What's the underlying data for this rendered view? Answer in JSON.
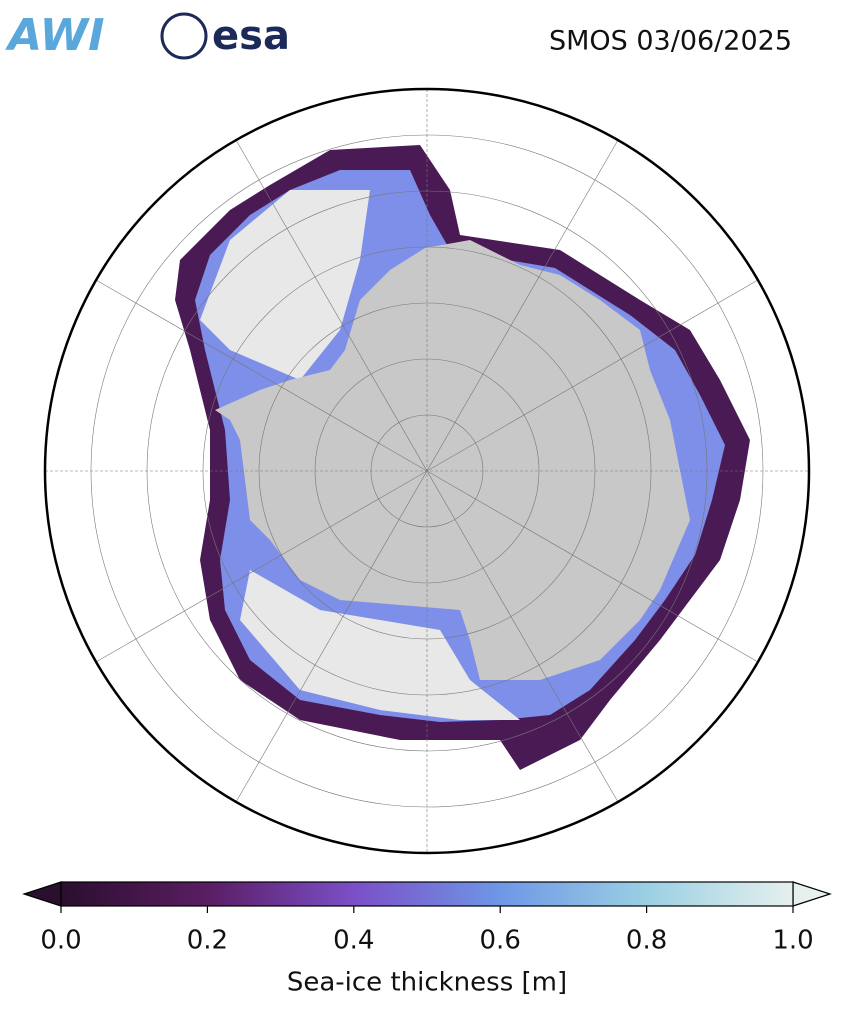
{
  "header": {
    "logos": [
      "AWI",
      "esa"
    ],
    "title": "SMOS 03/06/2025"
  },
  "colorbar": {
    "label": "Sea-ice thickness [m]",
    "range": [
      0,
      1
    ],
    "colors": [
      "#2a0f2e",
      "#5a1d63",
      "#7b4fc7",
      "#6e97e6",
      "#9bcfe3",
      "#e6f0ee"
    ],
    "ticks": [
      {
        "value": 0,
        "label": "0.0"
      },
      {
        "value": 0.2,
        "label": "0.2"
      },
      {
        "value": 0.4,
        "label": "0.4"
      },
      {
        "value": 0.6,
        "label": "0.6"
      },
      {
        "value": 0.8,
        "label": "0.8"
      },
      {
        "value": 1,
        "label": "1.0"
      }
    ]
  }
}
